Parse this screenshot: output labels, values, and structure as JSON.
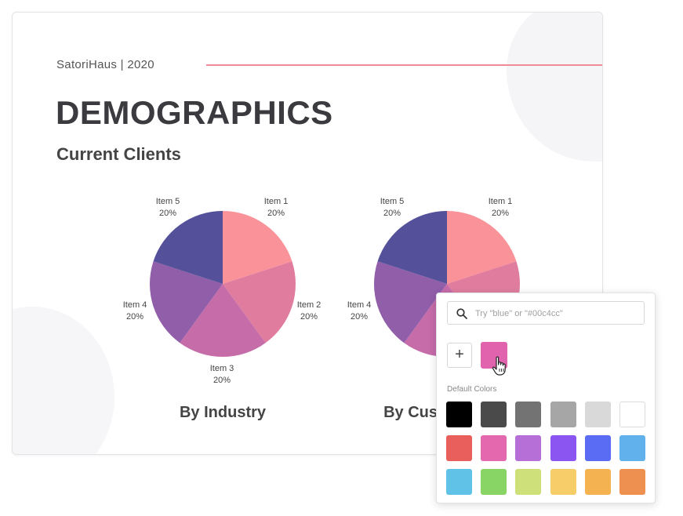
{
  "slide": {
    "brand": "SatoriHaus | 2020",
    "title": "DEMOGRAPHICS",
    "subtitle": "Current Clients",
    "accent_line_color": "#f08c98"
  },
  "charts": [
    {
      "caption": "By Industry",
      "labels": [
        {
          "name": "Item 1",
          "pct": "20%"
        },
        {
          "name": "Item 2",
          "pct": "20%"
        },
        {
          "name": "Item 3",
          "pct": "20%"
        },
        {
          "name": "Item 4",
          "pct": "20%"
        },
        {
          "name": "Item 5",
          "pct": "20%"
        }
      ]
    },
    {
      "caption": "By Custo",
      "labels": [
        {
          "name": "Item 1",
          "pct": "20%"
        },
        {
          "name": "Item 4",
          "pct": "20%"
        },
        {
          "name": "Item 5",
          "pct": "20%"
        }
      ]
    }
  ],
  "slices": [
    {
      "name": "Item 1",
      "value": 20,
      "color": "#fa9299"
    },
    {
      "name": "Item 2",
      "value": 20,
      "color": "#e07d9f"
    },
    {
      "name": "Item 3",
      "value": 20,
      "color": "#c66ca9"
    },
    {
      "name": "Item 4",
      "value": 20,
      "color": "#915eaa"
    },
    {
      "name": "Item 5",
      "value": 20,
      "color": "#54519a"
    }
  ],
  "picker": {
    "search_placeholder": "Try \"blue\" or \"#00c4cc\"",
    "add_symbol": "+",
    "custom_color": "#e263ad",
    "default_label": "Default Colors",
    "colors": [
      "#000000",
      "#4a4a4a",
      "#737373",
      "#a6a6a6",
      "#d9d9d9",
      "#ffffff",
      "#e95f5c",
      "#e368ad",
      "#b66fd6",
      "#8a55f0",
      "#5a6cf4",
      "#61b1ec",
      "#5fc2e6",
      "#88d464",
      "#cde07a",
      "#f7cd6a",
      "#f4b250",
      "#ee9150"
    ]
  }
}
